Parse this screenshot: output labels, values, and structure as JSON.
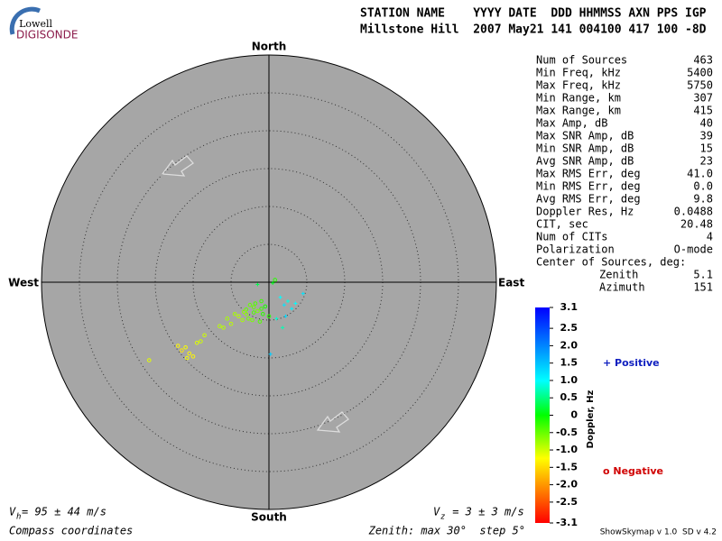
{
  "logo": {
    "line1": "Lowell",
    "line2": "DIGISONDE"
  },
  "header": {
    "columns": "STATION NAME    YYYY DATE  DDD HHMMSS AXN PPS IGP",
    "values": "Millstone Hill  2007 May21 141 004100 417 100 -8D"
  },
  "compass": {
    "north": "North",
    "south": "South",
    "east": "East",
    "west": "West"
  },
  "stats": [
    [
      "Num of Sources",
      "463"
    ],
    [
      "Min Freq, kHz",
      "5400"
    ],
    [
      "Max Freq, kHz",
      "5750"
    ],
    [
      "Min Range, km",
      "307"
    ],
    [
      "Max Range, km",
      "415"
    ],
    [
      "Max Amp, dB",
      "40"
    ],
    [
      "Max SNR Amp, dB",
      "39"
    ],
    [
      "Min SNR Amp, dB",
      "15"
    ],
    [
      "Avg SNR Amp, dB",
      "23"
    ],
    [
      "Max RMS Err, deg",
      "41.0"
    ],
    [
      "Min RMS Err, deg",
      "0.0"
    ],
    [
      "Avg RMS Err, deg",
      "9.8"
    ],
    [
      "Doppler Res, Hz",
      "0.0488"
    ],
    [
      "CIT, sec",
      "20.48"
    ],
    [
      "Num of CITs",
      "4"
    ],
    [
      "Polarization",
      "O-mode"
    ]
  ],
  "center_label": "Center of Sources, deg:",
  "zenith": [
    "Zenith",
    "5.1"
  ],
  "azimuth": [
    "Azimuth",
    "151"
  ],
  "colorbar": {
    "label": "Doppler, Hz",
    "lim": [
      -3.1,
      3.1
    ],
    "ticks": [
      3.1,
      2.5,
      {
        "value": 2.0,
        "label": "2.0"
      },
      1.5,
      {
        "value": 1.0,
        "label": "1.0"
      },
      0.5,
      0,
      -0.5,
      {
        "value": -1.0,
        "label": "-1.0"
      },
      -1.5,
      {
        "value": -2.0,
        "label": "-2.0"
      },
      -2.5,
      -3.1
    ]
  },
  "legend": {
    "positive": "+ Positive",
    "negative": "o Negative"
  },
  "footer": {
    "vh_v": "V",
    "vh_sub": "h",
    "vh_text": " = 95 ± 44 m/s",
    "vz_v": "V",
    "vz_sub": "z",
    "vz_text": " = 3 ± 3 m/s",
    "coords": "Compass coordinates",
    "zenith_note": "Zenith: max 30°  step 5°",
    "version": "ShowSkymap v 1.0  SD v 4.2"
  },
  "sky": {
    "max_zenith": 30,
    "step": 5,
    "sources": {
      "east": [
        -1.5,
        -2,
        -3,
        -1,
        0,
        -2.5,
        -3.5,
        -4,
        -1.8,
        -0.5,
        -2.2,
        -3,
        -4.5,
        -5,
        -1,
        -2.7,
        -3.3,
        -0.8,
        -2,
        -1.2,
        -6,
        -5.5,
        -6.5,
        1.5,
        2,
        2.5,
        3,
        1,
        2.2,
        3.5,
        4.5,
        1.8,
        0.2,
        -10.5,
        -11,
        -10,
        -9.5,
        -11.5,
        -10.8,
        -9,
        -12,
        -15.8,
        -8.5,
        -1.5,
        0.8,
        0.5
      ],
      "north": [
        -3.8,
        -4,
        -4.2,
        -3.5,
        -4.5,
        -3,
        -5,
        -4.5,
        -2.8,
        -3.2,
        -5,
        -3.6,
        -4.2,
        -5.5,
        -2.5,
        -4.8,
        -3.9,
        -4.2,
        -3.3,
        -5.2,
        -6,
        -4.8,
        -5.8,
        -2,
        -3,
        -2.5,
        -3.5,
        -4.8,
        -4.5,
        -2.8,
        -1.5,
        -6,
        -9.5,
        -9.4,
        -8.6,
        -9.8,
        -8,
        -9,
        -10,
        -7.8,
        -8.4,
        -10.3,
        -7,
        -0.3,
        0.3,
        -0.1
      ],
      "doppler": [
        -0.6,
        -0.4,
        -0.7,
        -0.3,
        -0.2,
        -0.5,
        -0.8,
        -0.9,
        -0.4,
        -0.1,
        -0.6,
        -0.5,
        -0.8,
        -0.9,
        -0.3,
        -0.6,
        -0.7,
        -0.2,
        -0.5,
        -0.4,
        -0.9,
        -0.8,
        -0.9,
        1.0,
        1.2,
        0.9,
        1.1,
        0.8,
        1.3,
        1.0,
        1.2,
        0.7,
        1.4,
        -1.3,
        -1.2,
        -1.3,
        -1.1,
        -1.4,
        -1.2,
        -1.0,
        -1.3,
        -1.1,
        -1.0,
        0.3,
        -0.2,
        0.1
      ]
    }
  }
}
